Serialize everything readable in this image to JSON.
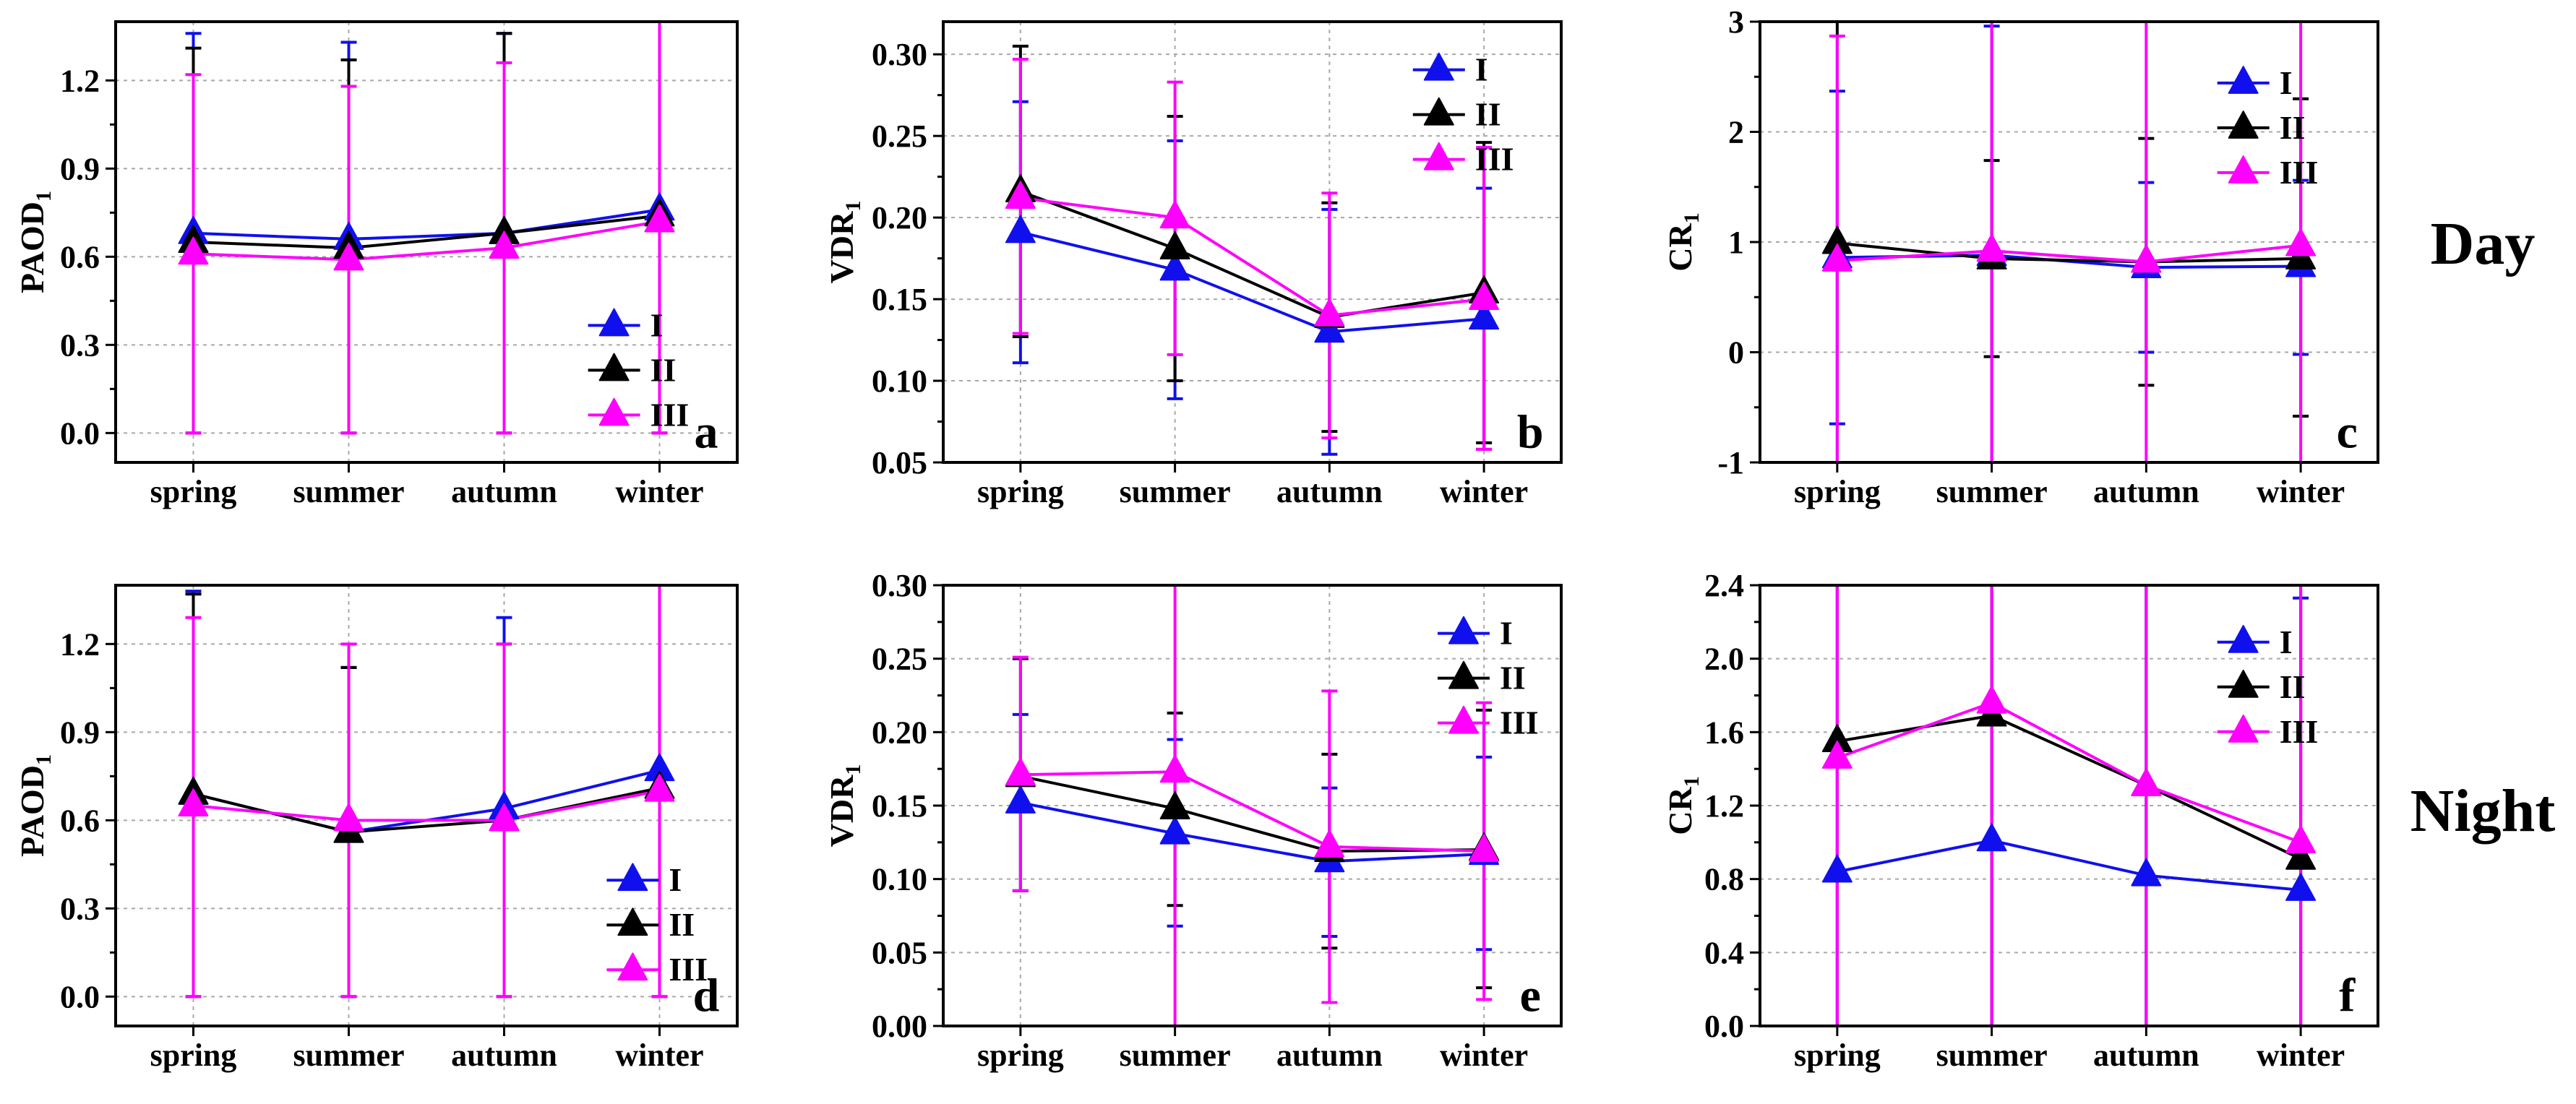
{
  "colors": {
    "I": "#1010ee",
    "II": "#000000",
    "III": "#ff00ff"
  },
  "row_labels": [
    "Day",
    "Night"
  ],
  "chart_data": [
    {
      "type": "line",
      "panel": "a",
      "ylabel": "PAOD",
      "ylabel_sub": "1",
      "categories": [
        "spring",
        "summer",
        "autumn",
        "winter"
      ],
      "ylim": [
        -0.1,
        1.4
      ],
      "yticks": [
        0.0,
        0.3,
        0.6,
        0.9,
        1.2
      ],
      "ytick_labels": [
        "0.0",
        "0.3",
        "0.6",
        "0.9",
        "1.2"
      ],
      "legend": {
        "position": "bottom-right",
        "entries": [
          "I",
          "II",
          "III"
        ]
      },
      "series": [
        {
          "name": "I",
          "values": [
            0.68,
            0.66,
            0.68,
            0.76
          ],
          "err_low": [
            0.0,
            0.0,
            0.0,
            0.0
          ],
          "err_high": [
            1.36,
            1.33,
            1.36,
            1.52
          ]
        },
        {
          "name": "II",
          "values": [
            0.65,
            0.63,
            0.68,
            0.74
          ],
          "err_low": [
            0.0,
            0.0,
            0.0,
            0.0
          ],
          "err_high": [
            1.31,
            1.27,
            1.36,
            1.48
          ]
        },
        {
          "name": "III",
          "values": [
            0.61,
            0.59,
            0.63,
            0.72
          ],
          "err_low": [
            0.0,
            0.0,
            0.0,
            0.0
          ],
          "err_high": [
            1.22,
            1.18,
            1.26,
            1.44
          ]
        }
      ]
    },
    {
      "type": "line",
      "panel": "b",
      "ylabel": "VDR",
      "ylabel_sub": "1",
      "categories": [
        "spring",
        "summer",
        "autumn",
        "winter"
      ],
      "ylim": [
        0.05,
        0.32
      ],
      "yticks": [
        0.05,
        0.1,
        0.15,
        0.2,
        0.25,
        0.3
      ],
      "ytick_labels": [
        "0.05",
        "0.10",
        "0.15",
        "0.20",
        "0.25",
        "0.30"
      ],
      "legend": {
        "position": "top-right",
        "entries": [
          "I",
          "II",
          "III"
        ]
      },
      "series": [
        {
          "name": "I",
          "values": [
            0.191,
            0.168,
            0.13,
            0.138
          ],
          "err_low": [
            0.111,
            0.089,
            0.055,
            0.058
          ],
          "err_high": [
            0.271,
            0.247,
            0.205,
            0.218
          ]
        },
        {
          "name": "II",
          "values": [
            0.216,
            0.181,
            0.139,
            0.154
          ],
          "err_low": [
            0.127,
            0.1,
            0.069,
            0.062
          ],
          "err_high": [
            0.305,
            0.262,
            0.209,
            0.246
          ]
        },
        {
          "name": "III",
          "values": [
            0.212,
            0.2,
            0.14,
            0.15
          ],
          "err_low": [
            0.129,
            0.116,
            0.065,
            0.058
          ],
          "err_high": [
            0.297,
            0.283,
            0.215,
            0.243
          ]
        }
      ]
    },
    {
      "type": "line",
      "panel": "c",
      "ylabel": "CR",
      "ylabel_sub": "1",
      "categories": [
        "spring",
        "summer",
        "autumn",
        "winter"
      ],
      "ylim": [
        -1,
        3
      ],
      "yticks": [
        -1,
        0,
        1,
        2,
        3
      ],
      "ytick_labels": [
        "-1",
        "0",
        "1",
        "2",
        "3"
      ],
      "legend": {
        "position": "top-right",
        "entries": [
          "I",
          "II",
          "III"
        ]
      },
      "series": [
        {
          "name": "I",
          "values": [
            0.86,
            0.88,
            0.77,
            0.78
          ],
          "err_low": [
            -0.65,
            -1.2,
            0.0,
            -0.02
          ],
          "err_high": [
            2.37,
            2.96,
            1.54,
            1.56
          ]
        },
        {
          "name": "II",
          "values": [
            0.99,
            0.85,
            0.82,
            0.85
          ],
          "err_low": [
            -1.2,
            -0.04,
            -0.3,
            -0.58
          ],
          "err_high": [
            3.2,
            1.74,
            1.94,
            2.3
          ]
        },
        {
          "name": "III",
          "values": [
            0.83,
            0.92,
            0.82,
            0.97
          ],
          "err_low": [
            -1.2,
            -1.2,
            -1.2,
            -1.2
          ],
          "err_high": [
            2.87,
            3.2,
            3.2,
            3.2
          ]
        }
      ]
    },
    {
      "type": "line",
      "panel": "d",
      "ylabel": "PAOD",
      "ylabel_sub": "1",
      "categories": [
        "spring",
        "summer",
        "autumn",
        "winter"
      ],
      "ylim": [
        -0.1,
        1.4
      ],
      "yticks": [
        0.0,
        0.3,
        0.6,
        0.9,
        1.2
      ],
      "ytick_labels": [
        "0.0",
        "0.3",
        "0.6",
        "0.9",
        "1.2"
      ],
      "legend": {
        "position": "bottom-right",
        "entries": [
          "I",
          "II",
          "III"
        ]
      },
      "series": [
        {
          "name": "I",
          "values": [
            0.69,
            0.56,
            0.64,
            0.77
          ],
          "err_low": [
            0.0,
            0.0,
            0.0,
            0.0
          ],
          "err_high": [
            1.38,
            1.12,
            1.29,
            1.55
          ]
        },
        {
          "name": "II",
          "values": [
            0.69,
            0.56,
            0.6,
            0.71
          ],
          "err_low": [
            0.0,
            0.0,
            0.0,
            0.0
          ],
          "err_high": [
            1.37,
            1.12,
            1.2,
            1.42
          ]
        },
        {
          "name": "III",
          "values": [
            0.65,
            0.6,
            0.6,
            0.7
          ],
          "err_low": [
            0.0,
            0.0,
            0.0,
            0.0
          ],
          "err_high": [
            1.29,
            1.2,
            1.2,
            1.4
          ]
        }
      ]
    },
    {
      "type": "line",
      "panel": "e",
      "ylabel": "VDR",
      "ylabel_sub": "1",
      "categories": [
        "spring",
        "summer",
        "autumn",
        "winter"
      ],
      "ylim": [
        0.0,
        0.3
      ],
      "yticks": [
        0.0,
        0.05,
        0.1,
        0.15,
        0.2,
        0.25,
        0.3
      ],
      "ytick_labels": [
        "0.00",
        "0.05",
        "0.10",
        "0.15",
        "0.20",
        "0.25",
        "0.30"
      ],
      "legend": {
        "position": "top-right",
        "entries": [
          "I",
          "II",
          "III"
        ]
      },
      "series": [
        {
          "name": "I",
          "values": [
            0.152,
            0.131,
            0.112,
            0.117
          ],
          "err_low": [
            0.092,
            0.068,
            0.061,
            0.052
          ],
          "err_high": [
            0.212,
            0.195,
            0.162,
            0.183
          ]
        },
        {
          "name": "II",
          "values": [
            0.17,
            0.148,
            0.119,
            0.12
          ],
          "err_low": [
            0.092,
            0.082,
            0.053,
            0.026
          ],
          "err_high": [
            0.25,
            0.213,
            0.185,
            0.215
          ]
        },
        {
          "name": "III",
          "values": [
            0.171,
            0.173,
            0.122,
            0.119
          ],
          "err_low": [
            0.092,
            -0.02,
            0.016,
            0.018
          ],
          "err_high": [
            0.251,
            0.31,
            0.228,
            0.22
          ]
        }
      ]
    },
    {
      "type": "line",
      "panel": "f",
      "ylabel": "CR",
      "ylabel_sub": "1",
      "categories": [
        "spring",
        "summer",
        "autumn",
        "winter"
      ],
      "ylim": [
        0.0,
        2.4
      ],
      "yticks": [
        0.0,
        0.4,
        0.8,
        1.2,
        1.6,
        2.0,
        2.4
      ],
      "ytick_labels": [
        "0.0",
        "0.4",
        "0.8",
        "1.2",
        "1.6",
        "2.0",
        "2.4"
      ],
      "legend": {
        "position": "top-right",
        "entries": [
          "I",
          "II",
          "III"
        ]
      },
      "series": [
        {
          "name": "I",
          "values": [
            0.84,
            1.01,
            0.82,
            0.74
          ],
          "err_low": [
            -0.1,
            -0.1,
            -0.1,
            -0.1
          ],
          "err_high": [
            2.5,
            2.5,
            2.5,
            2.33
          ]
        },
        {
          "name": "II",
          "values": [
            1.55,
            1.69,
            1.31,
            0.91
          ],
          "err_low": [
            -0.1,
            -0.1,
            -0.1,
            -0.1
          ],
          "err_high": [
            2.5,
            2.5,
            2.5,
            2.5
          ]
        },
        {
          "name": "III",
          "values": [
            1.46,
            1.76,
            1.31,
            1.0
          ],
          "err_low": [
            -0.1,
            -0.1,
            -0.1,
            -0.1
          ],
          "err_high": [
            2.5,
            2.5,
            2.5,
            2.5
          ]
        }
      ]
    }
  ]
}
